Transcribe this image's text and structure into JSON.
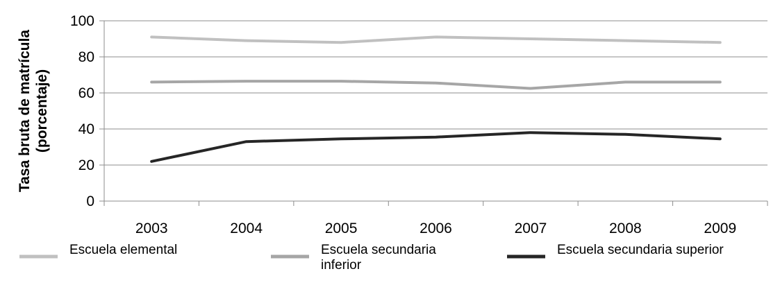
{
  "chart_data": {
    "type": "line",
    "title": "",
    "xlabel": "",
    "ylabel_lines": [
      "Tasa bruta de matrícula",
      "(porcentaje)"
    ],
    "x": [
      "2003",
      "2004",
      "2005",
      "2006",
      "2007",
      "2008",
      "2009"
    ],
    "ylim": [
      0,
      100
    ],
    "yticks": [
      0,
      20,
      40,
      60,
      80,
      100
    ],
    "grid": true,
    "legend_position": "bottom",
    "series": [
      {
        "name_lines": [
          "Escuela elemental"
        ],
        "values": [
          91,
          89,
          88,
          91,
          90,
          89,
          88
        ],
        "color": "#c0c0c0"
      },
      {
        "name_lines": [
          "Escuela secundaria",
          "inferior"
        ],
        "values": [
          66,
          66.5,
          66.5,
          65.5,
          62.5,
          66,
          66
        ],
        "color": "#a6a6a6"
      },
      {
        "name_lines": [
          "Escuela secundaria superior"
        ],
        "values": [
          22,
          33,
          34.5,
          35.5,
          38,
          37,
          34.5
        ],
        "color": "#262626"
      }
    ]
  }
}
